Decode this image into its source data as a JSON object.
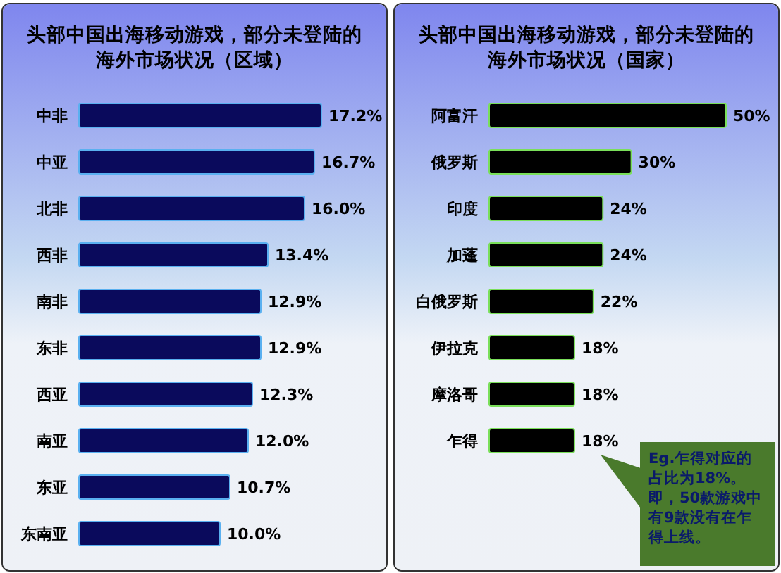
{
  "chart_data": [
    {
      "type": "bar",
      "orientation": "horizontal",
      "title": "头部中国出海移动游戏，部分未登陆的海外市场状况（区域）",
      "categories": [
        "中非",
        "中亚",
        "北非",
        "西非",
        "南非",
        "东非",
        "西亚",
        "南亚",
        "东亚",
        "东南亚"
      ],
      "values": [
        17.2,
        16.7,
        16.0,
        13.4,
        12.9,
        12.9,
        12.3,
        12.0,
        10.7,
        10.0
      ],
      "value_labels": [
        "17.2%",
        "16.7%",
        "16.0%",
        "13.4%",
        "12.9%",
        "12.9%",
        "12.3%",
        "12.0%",
        "10.7%",
        "10.0%"
      ],
      "color": "#0a0a5c"
    },
    {
      "type": "bar",
      "orientation": "horizontal",
      "title": "头部中国出海移动游戏，部分未登陆的海外市场状况（国家）",
      "categories": [
        "阿富汗",
        "俄罗斯",
        "印度",
        "加蓬",
        "白俄罗斯",
        "伊拉克",
        "摩洛哥",
        "乍得"
      ],
      "values": [
        50,
        30,
        24,
        24,
        22,
        18,
        18,
        18
      ],
      "value_labels": [
        "50%",
        "30%",
        "24%",
        "24%",
        "22%",
        "18%",
        "18%",
        "18%"
      ],
      "color": "#000000",
      "annotations": [
        "Eg.乍得对应的占比为18%。即，50款游戏中有9款没有在乍得上线。"
      ]
    }
  ]
}
